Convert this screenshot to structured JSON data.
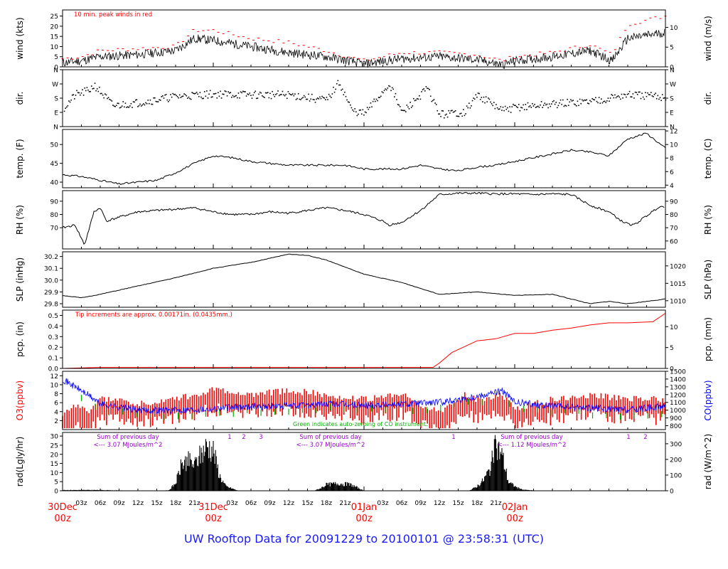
{
  "footer": {
    "title": "UW Rooftop Data for 20091229  to  20100101 @ 23:58:31  (UTC)"
  },
  "colors": {
    "red": "#ff0000",
    "blue": "#0000ff",
    "green": "#00b000",
    "purple": "#9900cc",
    "black": "#000000",
    "footer": "#1a1aff"
  },
  "chart_data": [
    {
      "type": "line",
      "id": "wind",
      "ylabel": "wind (kts)",
      "ylabel_right": "wind (m/s)",
      "ylim": [
        0,
        28
      ],
      "yticks": [
        0,
        5,
        10,
        15,
        20,
        25
      ],
      "yticks_right": [
        0,
        5,
        10
      ],
      "right_scale": 1.944,
      "annotation": "10 min. peak winds in red",
      "x": [
        0,
        3,
        6,
        12,
        18,
        21,
        24,
        30,
        36,
        42,
        48,
        54,
        60,
        66,
        70,
        72,
        78,
        84,
        87.5,
        90,
        96
      ],
      "series": [
        {
          "values": [
            2,
            3,
            5,
            6,
            8,
            14,
            13,
            10,
            7,
            5,
            1.5,
            4,
            5,
            3.5,
            1,
            3,
            5,
            8,
            3,
            14,
            17
          ]
        },
        {
          "values": [
            4,
            5,
            8,
            9,
            10,
            18,
            18,
            14,
            12,
            8,
            3,
            7,
            7,
            6,
            3,
            5,
            7,
            11,
            6,
            21,
            25
          ]
        }
      ]
    },
    {
      "type": "scatter",
      "id": "dir",
      "ylabel": "dir.",
      "ylabel_right": "dir.",
      "ylim": [
        0,
        360
      ],
      "yticks": [
        "N",
        "E",
        "S",
        "W",
        "N"
      ],
      "x": [
        0,
        2,
        4,
        5,
        8,
        12,
        18,
        24,
        30,
        36,
        42,
        44,
        46,
        48,
        52,
        54,
        58,
        60,
        64,
        66,
        70,
        72,
        78,
        84,
        90,
        96
      ],
      "values": [
        110,
        200,
        225,
        260,
        130,
        150,
        190,
        205,
        200,
        200,
        165,
        280,
        100,
        80,
        270,
        85,
        240,
        75,
        90,
        200,
        100,
        120,
        140,
        160,
        200,
        185
      ]
    },
    {
      "type": "line",
      "id": "temp",
      "ylabel": "temp. (F)",
      "ylabel_right": "temp. (C)",
      "ylim": [
        38.5,
        54
      ],
      "yticks": [
        40,
        45,
        50
      ],
      "yticks_right": [
        4,
        6,
        8,
        10,
        12
      ],
      "x": [
        0,
        3,
        6,
        9,
        12,
        15,
        18,
        21,
        24,
        27,
        30,
        33,
        36,
        39,
        42,
        45,
        48,
        51,
        54,
        57,
        60,
        63,
        66,
        69,
        72,
        75,
        78,
        81,
        84,
        87,
        90,
        93,
        96
      ],
      "values": [
        42,
        41.5,
        40.5,
        39.5,
        40,
        40.5,
        42.5,
        45,
        47,
        46.5,
        45.5,
        45,
        44.5,
        44.5,
        44.5,
        44.5,
        43.5,
        43.5,
        43.5,
        44.5,
        43.5,
        43,
        44,
        44.5,
        45.5,
        46.5,
        47.5,
        48.5,
        48,
        47,
        51.5,
        53,
        49
      ]
    },
    {
      "type": "line",
      "id": "rh",
      "ylabel": "RH (%)",
      "ylabel_right": "RH (%)",
      "ylim": [
        54,
        98
      ],
      "yticks": [
        70,
        80,
        90
      ],
      "yticks_right": [
        60,
        70,
        80,
        90
      ],
      "x": [
        0,
        2,
        3,
        3.5,
        5,
        6,
        7,
        9,
        12,
        15,
        18,
        21,
        24,
        27,
        30,
        33,
        36,
        39,
        42,
        45,
        48,
        51,
        52,
        54,
        57,
        60,
        63,
        66,
        69,
        72,
        75,
        78,
        81,
        84,
        87,
        89,
        90,
        91,
        93,
        95,
        96
      ],
      "values": [
        70,
        72,
        62,
        57,
        82,
        85,
        75,
        78,
        82,
        83,
        84,
        85,
        82,
        80,
        80,
        82,
        81,
        83,
        85,
        83,
        80,
        75,
        72,
        74,
        83,
        95,
        96,
        96,
        95.5,
        95.5,
        95,
        95.5,
        95,
        87,
        82,
        75,
        73,
        72,
        79,
        86,
        86
      ]
    },
    {
      "type": "line",
      "id": "slp",
      "ylabel": "SLP (inHg)",
      "ylabel_right": "SLP (hPa)",
      "ylim": [
        29.77,
        30.24
      ],
      "yticks": [
        29.8,
        29.9,
        30.0,
        30.1,
        30.2
      ],
      "yticks_right": [
        1010,
        1015,
        1020
      ],
      "x": [
        0,
        3,
        6,
        12,
        18,
        24,
        30,
        36,
        39,
        42,
        48,
        54,
        60,
        66,
        72,
        78,
        81,
        84,
        87,
        90,
        96
      ],
      "values": [
        29.87,
        29.85,
        29.88,
        29.95,
        30.02,
        30.1,
        30.15,
        30.22,
        30.21,
        30.17,
        30.05,
        29.98,
        29.88,
        29.9,
        29.87,
        29.88,
        29.84,
        29.8,
        29.82,
        29.8,
        29.84
      ]
    },
    {
      "type": "line",
      "id": "pcp",
      "ylabel": "pcp. (in)",
      "ylabel_right": "pcp. (mm)",
      "ylim": [
        0,
        0.55
      ],
      "yticks": [
        0.0,
        0.1,
        0.2,
        0.3,
        0.4,
        0.5
      ],
      "yticks_right": [
        0,
        5,
        10
      ],
      "annotation": "Tip increments are approx. 0.00171in. (0.0435mm.)",
      "x": [
        0,
        6,
        12,
        18,
        24,
        30,
        36,
        42,
        48,
        54,
        59,
        60,
        62,
        66,
        69,
        72,
        75,
        78,
        81,
        84,
        87,
        90,
        94,
        96
      ],
      "values": [
        0,
        0.01,
        0.01,
        0.01,
        0.01,
        0.01,
        0.01,
        0.01,
        0.01,
        0.01,
        0.01,
        0.05,
        0.15,
        0.26,
        0.28,
        0.33,
        0.33,
        0.36,
        0.38,
        0.41,
        0.43,
        0.43,
        0.44,
        0.52
      ]
    },
    {
      "type": "line",
      "id": "o3co",
      "ylabel": "O3(ppbv)",
      "ylabel_right": "CO(ppbv)",
      "ylim": [
        0,
        13
      ],
      "yticks": [
        2,
        4,
        6,
        8,
        10,
        12
      ],
      "yticks_right": [
        800,
        900,
        1000,
        1100,
        1200,
        1300,
        1400,
        1500
      ],
      "annotation": "Green indicates auto-zeroing of CO instrument.",
      "x": [
        0,
        2,
        4,
        6,
        12,
        18,
        24,
        30,
        36,
        42,
        48,
        54,
        60,
        64,
        66,
        70,
        72,
        78,
        84,
        90,
        96
      ],
      "series": [
        {
          "name": "O3(ppbv)",
          "values": [
            2,
            5,
            3,
            6,
            5,
            6,
            8,
            7,
            8,
            7,
            6,
            7,
            3,
            7,
            6,
            7,
            4,
            6,
            7,
            6,
            6
          ]
        },
        {
          "name": "CO(ppbv)",
          "values": [
            1400,
            1300,
            1200,
            1080,
            1000,
            1000,
            1020,
            1050,
            1050,
            1080,
            1060,
            1080,
            1100,
            1150,
            1180,
            1250,
            1100,
            1050,
            1030,
            1000,
            1050
          ]
        }
      ]
    },
    {
      "type": "area",
      "id": "rad",
      "ylabel": "rad(Lgly/hr)",
      "ylabel_right": "rad (W/m^2)",
      "ylim": [
        0,
        32
      ],
      "yticks": [
        0,
        5,
        10,
        15,
        20,
        25,
        30
      ],
      "yticks_right": [
        0,
        100,
        200,
        300
      ],
      "x": [
        0,
        6,
        12,
        16,
        17,
        18,
        19,
        20,
        21,
        22,
        23,
        24,
        25,
        26,
        28,
        40,
        41,
        42,
        44,
        46,
        47,
        48,
        50,
        64,
        65,
        66,
        67,
        68,
        69,
        70,
        71,
        72,
        73,
        74,
        76,
        88,
        89,
        90,
        91,
        92,
        93,
        94,
        95,
        96
      ],
      "values": [
        0.5,
        0.5,
        0,
        0,
        0.5,
        5,
        18,
        20,
        17,
        24,
        30,
        27,
        10,
        3,
        0,
        0,
        1.5,
        4,
        5,
        4,
        2,
        0,
        0,
        0,
        0.5,
        3,
        7,
        14,
        30,
        24,
        6,
        3,
        1,
        0.5,
        0,
        0,
        0,
        0,
        0,
        0,
        0,
        0,
        0,
        0
      ],
      "annotations": [
        {
          "text": "Sum of previous day",
          "sub": "<--- 3.07 MJoules/m^2"
        },
        {
          "text": "Sum of previous day",
          "sub": "<--- 3.07 MJoules/m^2"
        },
        {
          "text": "Sum of previous day",
          "sub": "<--- 1.12 MJoules/m^2"
        }
      ],
      "marks": [
        "1",
        "2",
        "3",
        "1",
        "1",
        "2"
      ]
    }
  ],
  "xaxis": {
    "ticks": [
      "03z",
      "06z",
      "09z",
      "12z",
      "15z",
      "18z",
      "21z",
      "03z",
      "06z",
      "09z",
      "12z",
      "15z",
      "18z",
      "21z",
      "03z",
      "06z",
      "09z",
      "12z",
      "15z",
      "18z",
      "21z"
    ],
    "day_labels": [
      {
        "date": "30Dec",
        "hour": "00z"
      },
      {
        "date": "31Dec",
        "hour": "00z"
      },
      {
        "date": "01Jan",
        "hour": "00z"
      },
      {
        "date": "02Jan",
        "hour": "00z"
      }
    ]
  }
}
